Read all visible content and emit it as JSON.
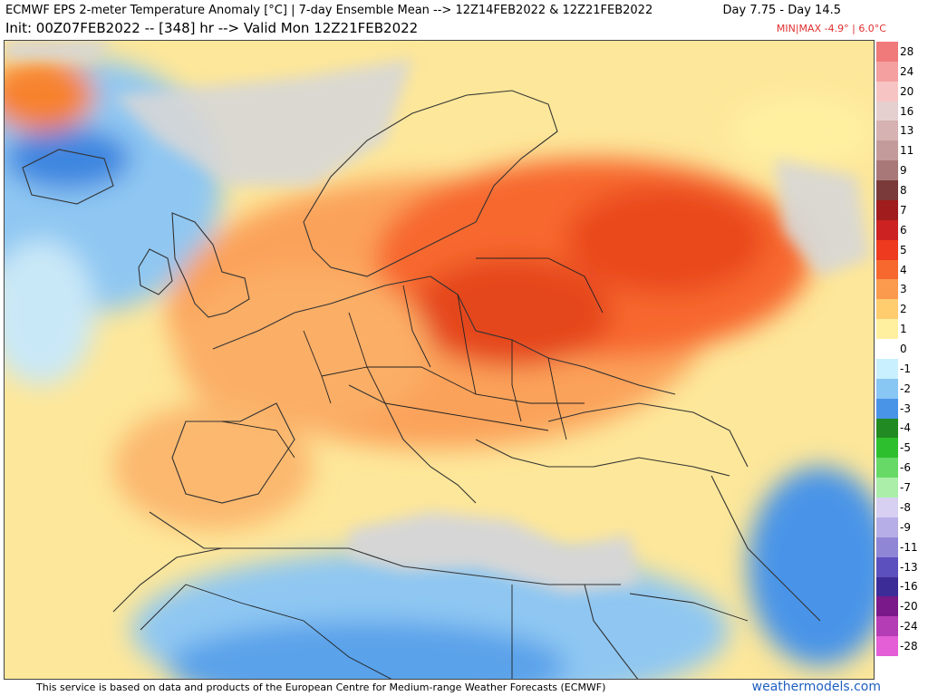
{
  "header": {
    "title_line1": "ECMWF EPS 2-meter Temperature Anomaly [°C] | 7-day Ensemble Mean --> 12Z14FEB2022 & 12Z21FEB2022",
    "title_range": "Day 7.75 - Day 14.5",
    "title_line2": "Init: 00Z07FEB2022 -- [348] hr --> Valid Mon 12Z21FEB2022",
    "minmax_label": "MIN|MAX",
    "min_value": "-4.9°",
    "sep": "|",
    "max_value": "6.0°C"
  },
  "colorbar": {
    "labels": [
      "28",
      "24",
      "20",
      "16",
      "13",
      "11",
      "9",
      "8",
      "7",
      "6",
      "5",
      "4",
      "3",
      "2",
      "1",
      "0",
      "-1",
      "-2",
      "-3",
      "-4",
      "-5",
      "-6",
      "-7",
      "-8",
      "-9",
      "-11",
      "-13",
      "-16",
      "-20",
      "-24",
      "-28"
    ],
    "colors": [
      "#f07a7a",
      "#f4a0a0",
      "#f7c4c4",
      "#e6cfcf",
      "#d6b2b2",
      "#c49b9b",
      "#a87878",
      "#7a3a3a",
      "#a11c1c",
      "#cc2222",
      "#ee3a1e",
      "#f7682e",
      "#fb9a4c",
      "#ffcc6e",
      "#fff0a0",
      "#ffffff",
      "#c9f0ff",
      "#88c6f4",
      "#4a94e8",
      "#228a22",
      "#2ebf2e",
      "#66d966",
      "#aaeeaa",
      "#d8d0f2",
      "#b6aee6",
      "#8f86d6",
      "#5c50be",
      "#3c2c98",
      "#7a1a8a",
      "#b43cb4",
      "#e45ed6"
    ]
  },
  "footer": {
    "note": "This service is based on data and products of the European Centre for Medium-range Weather Forecasts (ECMWF)",
    "brand": "weathermodels.com"
  }
}
